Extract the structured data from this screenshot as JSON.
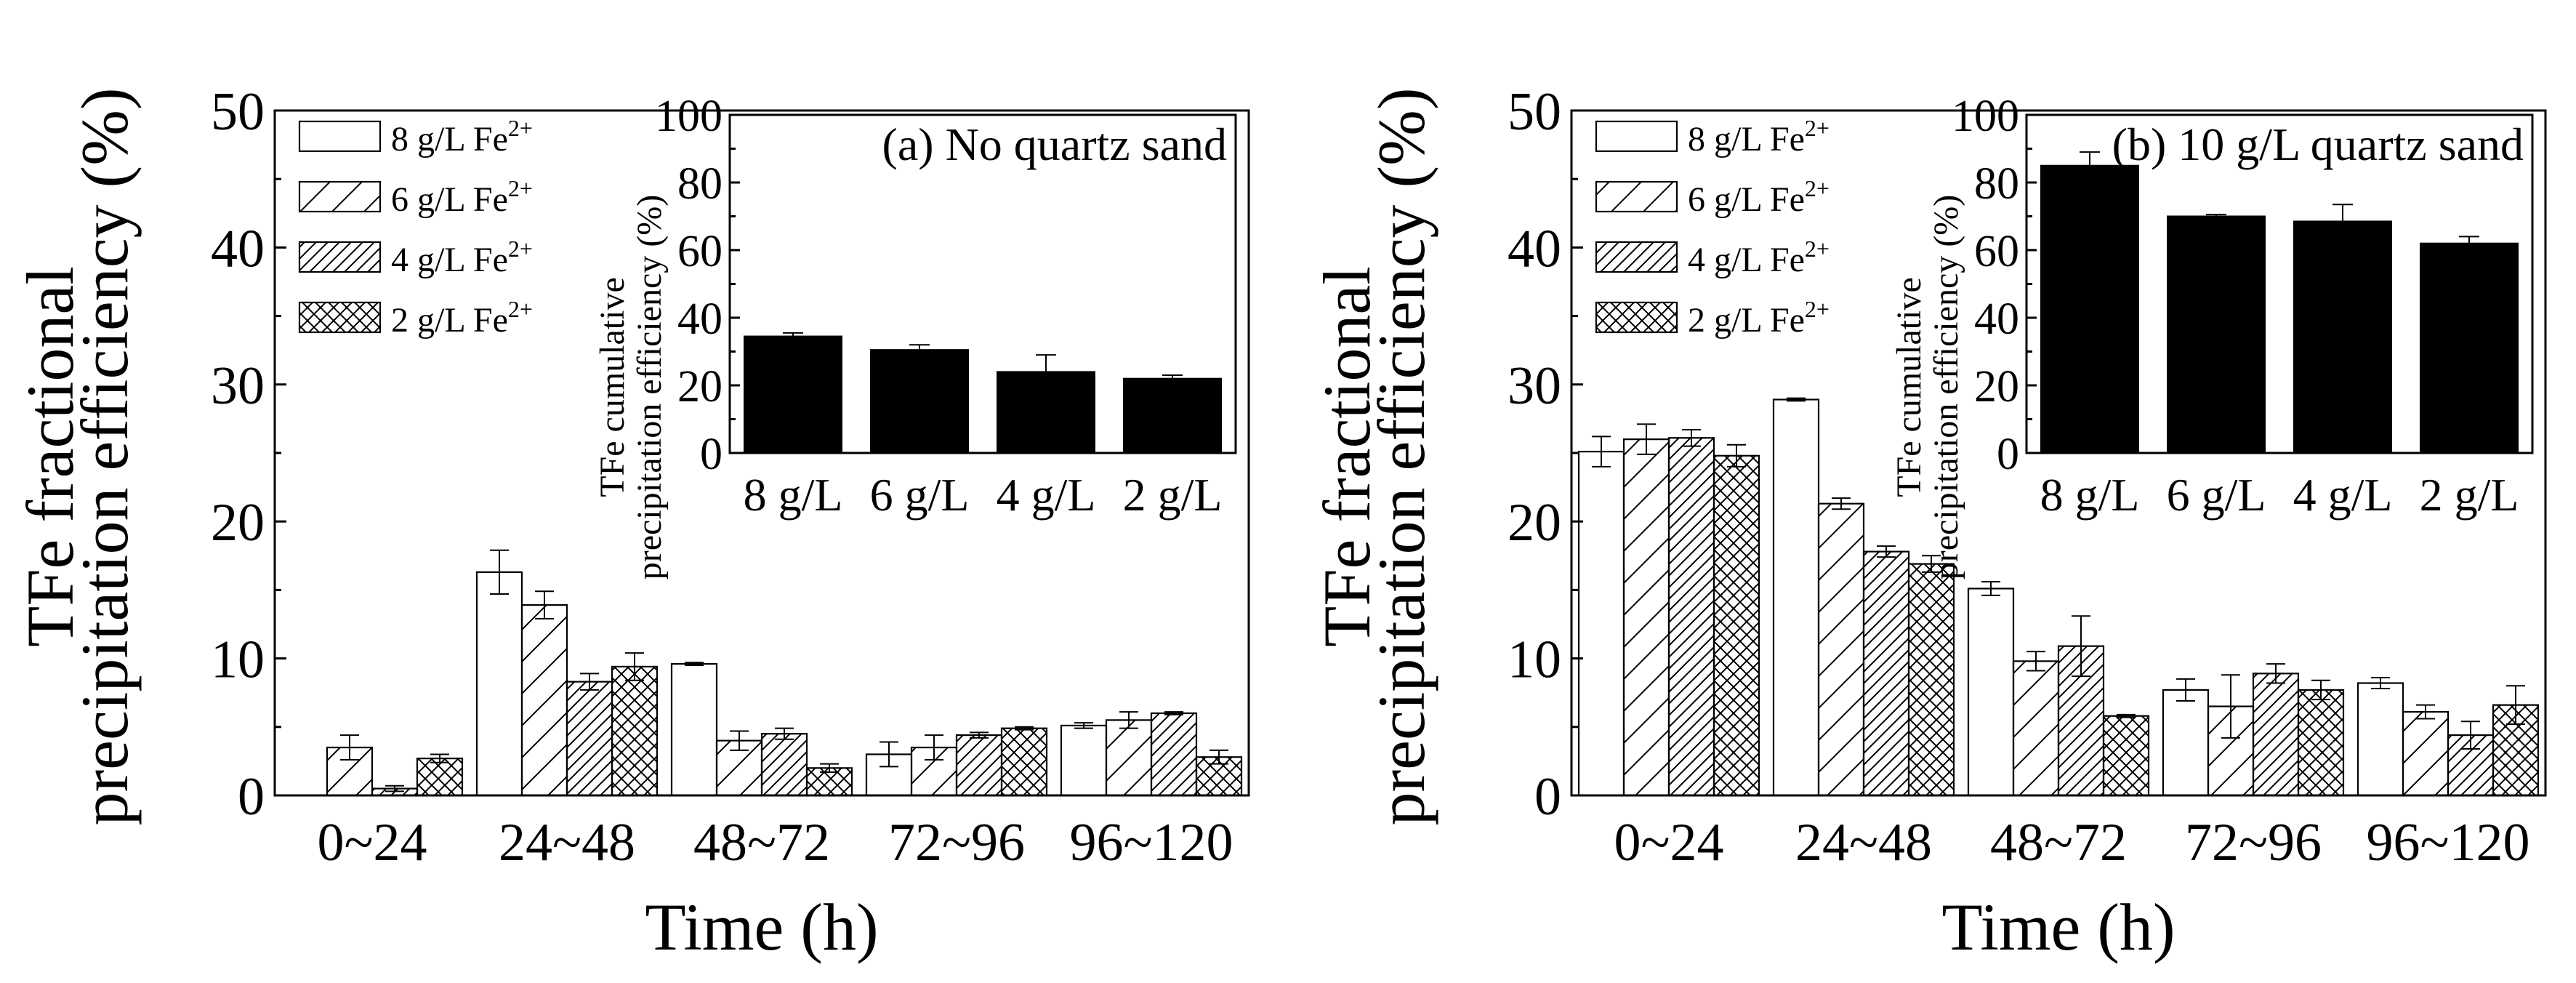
{
  "chart_data": [
    {
      "type": "bar",
      "panel_label": "(a) No quartz sand",
      "xlabel": "Time (h)",
      "ylabel_lines": [
        "TFe fractional",
        "precipitation efficiency (%)"
      ],
      "ylim": [
        0,
        50
      ],
      "yticks": [
        "0",
        "10",
        "20",
        "30",
        "40",
        "50"
      ],
      "categories": [
        "0~24",
        "24~48",
        "48~72",
        "72~96",
        "96~120"
      ],
      "legend": [
        "8 g/L Fe",
        "6 g/L Fe",
        "4 g/L Fe",
        "2 g/L Fe"
      ],
      "legend_superscript": "2+",
      "series": [
        {
          "name": "8 g/L Fe2+",
          "values": [
            0,
            16.3,
            9.6,
            3.0,
            5.1
          ],
          "errors": [
            0,
            1.6,
            0.1,
            0.9,
            0.2
          ]
        },
        {
          "name": "6 g/L Fe2+",
          "values": [
            3.5,
            13.9,
            4.0,
            3.5,
            5.5
          ],
          "errors": [
            0.9,
            1.0,
            0.7,
            0.9,
            0.6
          ]
        },
        {
          "name": "4 g/L Fe2+",
          "values": [
            0.5,
            8.3,
            4.5,
            4.4,
            6.0
          ],
          "errors": [
            0.2,
            0.6,
            0.4,
            0.2,
            0.1
          ]
        },
        {
          "name": "2 g/L Fe2+",
          "values": [
            2.7,
            9.4,
            2.0,
            4.9,
            2.8
          ],
          "errors": [
            0.3,
            1.0,
            0.3,
            0.1,
            0.5
          ]
        }
      ],
      "inset": {
        "ylabel_lines": [
          "TFe cumulative",
          "precipitation efficiency (%)"
        ],
        "ylim": [
          0,
          100
        ],
        "yticks": [
          "0",
          "20",
          "40",
          "60",
          "80",
          "100"
        ],
        "categories": [
          "8 g/L",
          "6 g/L",
          "4 g/L",
          "2 g/L"
        ],
        "values": [
          34.5,
          30.5,
          24.0,
          22.0
        ],
        "errors": [
          1.0,
          1.5,
          5.0,
          1.0
        ]
      }
    },
    {
      "type": "bar",
      "panel_label": "(b) 10 g/L quartz sand",
      "xlabel": "Time (h)",
      "ylabel_lines": [
        "TFe fractional",
        "precipitation efficiency (%)"
      ],
      "ylim": [
        0,
        50
      ],
      "yticks": [
        "0",
        "10",
        "20",
        "30",
        "40",
        "50"
      ],
      "categories": [
        "0~24",
        "24~48",
        "48~72",
        "72~96",
        "96~120"
      ],
      "legend": [
        "8 g/L Fe",
        "6 g/L Fe",
        "4 g/L Fe",
        "2 g/L Fe"
      ],
      "legend_superscript": "2+",
      "series": [
        {
          "name": "8 g/L Fe2+",
          "values": [
            25.1,
            28.9,
            15.1,
            7.7,
            8.2
          ],
          "errors": [
            1.1,
            0.1,
            0.5,
            0.8,
            0.4
          ]
        },
        {
          "name": "6 g/L Fe2+",
          "values": [
            26.0,
            21.3,
            9.8,
            6.5,
            6.1
          ],
          "errors": [
            1.1,
            0.4,
            0.7,
            2.3,
            0.5
          ]
        },
        {
          "name": "4 g/L Fe2+",
          "values": [
            26.1,
            17.8,
            10.9,
            8.9,
            4.4
          ],
          "errors": [
            0.6,
            0.4,
            2.2,
            0.7,
            1.0
          ]
        },
        {
          "name": "2 g/L Fe2+",
          "values": [
            24.8,
            16.9,
            5.8,
            7.7,
            6.6
          ],
          "errors": [
            0.8,
            0.6,
            0.1,
            0.7,
            1.4
          ]
        }
      ],
      "inset": {
        "ylabel_lines": [
          "TFe cumulative",
          "precipitation efficiency (%)"
        ],
        "ylim": [
          0,
          100
        ],
        "yticks": [
          "0",
          "20",
          "40",
          "60",
          "80",
          "100"
        ],
        "categories": [
          "8 g/L",
          "6 g/L",
          "4 g/L",
          "2 g/L"
        ],
        "values": [
          85.0,
          70.0,
          68.5,
          62.0
        ],
        "errors": [
          4.0,
          0.5,
          5.0,
          2.0
        ]
      }
    }
  ]
}
